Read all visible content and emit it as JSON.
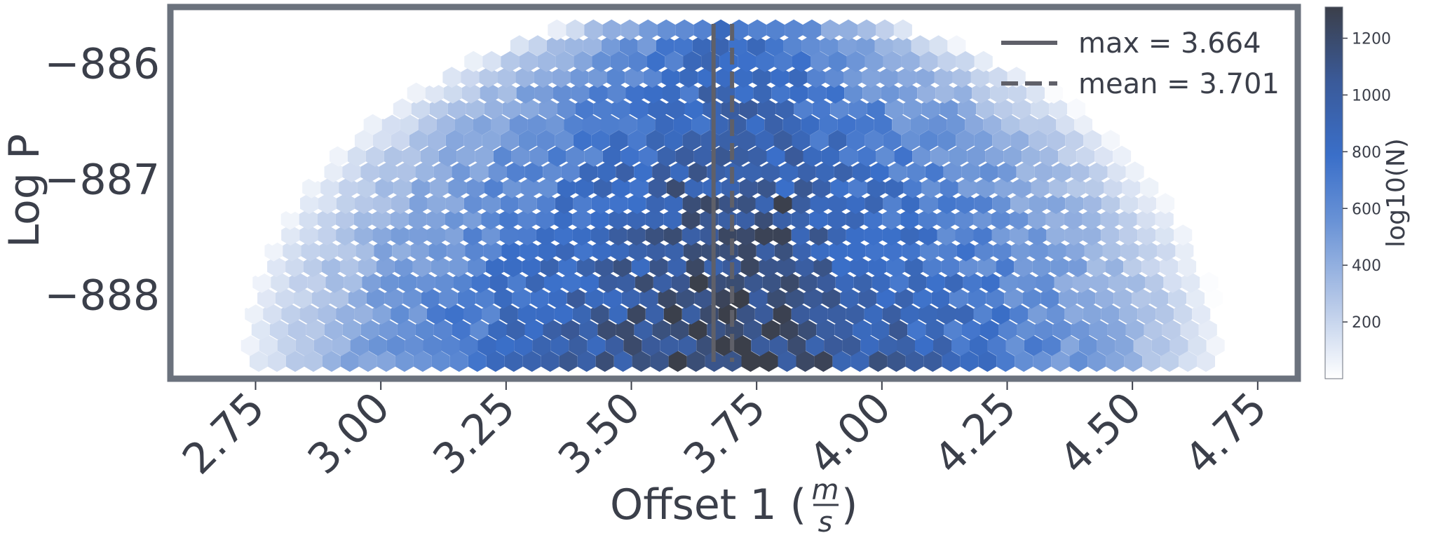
{
  "chart_data": {
    "type": "heatmap",
    "subtype": "hexbin",
    "xlabel_text": "Offset 1 (",
    "xlabel_frac_num": "m",
    "xlabel_frac_den": "s",
    "xlabel_close": ")",
    "ylabel": "Log P",
    "xlim": [
      2.58,
      4.83
    ],
    "ylim": [
      -888.73,
      -885.52
    ],
    "xticks": [
      2.75,
      3.0,
      3.25,
      3.5,
      3.75,
      4.0,
      4.25,
      4.5,
      4.75
    ],
    "xtick_labels": [
      "2.75",
      "3.00",
      "3.25",
      "3.50",
      "3.75",
      "4.00",
      "4.25",
      "4.50",
      "4.75"
    ],
    "yticks": [
      -886,
      -887,
      -888
    ],
    "ytick_labels": [
      "−886",
      "−887",
      "−888"
    ],
    "vlines": [
      {
        "name": "max = 3.664",
        "x": 3.664,
        "style": "solid",
        "color": "#5f6069"
      },
      {
        "name": "mean = 3.701",
        "x": 3.701,
        "style": "dashed",
        "color": "#5f6069"
      }
    ],
    "legend_position": "top-right",
    "colorbar": {
      "label": "log10(N)",
      "range": [
        0,
        1310
      ],
      "ticks": [
        200,
        400,
        600,
        800,
        1000,
        1200
      ],
      "tick_labels": [
        "200",
        "400",
        "600",
        "800",
        "1000",
        "1200"
      ],
      "colors": [
        "#ffffff",
        "#b7c9e8",
        "#6a93d6",
        "#3a6fc9",
        "#3a5a99",
        "#3b3f4a"
      ]
    },
    "density": {
      "center_x": 3.7,
      "spread_x": 0.52,
      "x_min": 2.74,
      "x_max": 4.7,
      "y_top": -885.62,
      "y_bottom": -888.58,
      "peak_count": 1310,
      "hotspots": [
        {
          "x": 3.81,
          "y": -887.25,
          "count": 1300
        },
        {
          "x": 3.78,
          "y": -887.53,
          "count": 1270
        },
        {
          "x": 3.6,
          "y": -887.09,
          "count": 1180
        }
      ]
    },
    "grid": false,
    "frame_color": "#6b727d"
  }
}
